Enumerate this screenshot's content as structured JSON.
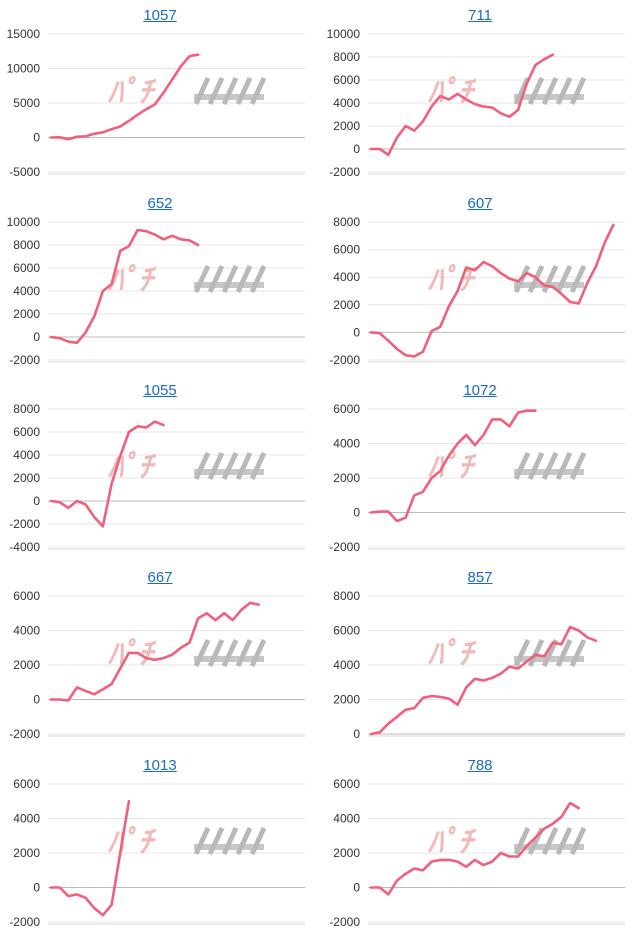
{
  "page": {
    "columns": 2,
    "rows": 5
  },
  "style": {
    "line_color": "#f0607a",
    "axis_color": "#cccccc",
    "title_color": "#1a6bc1",
    "watermark_color_left": "#f2b9b9",
    "watermark_color_right": "#b9b9b9"
  },
  "watermark": {
    "present": true
  },
  "chart_data": [
    {
      "type": "line",
      "title": "1057",
      "ylim": [
        -5000,
        15000
      ],
      "yticks": [
        15000,
        10000,
        5000,
        0,
        -5000
      ],
      "values": [
        0,
        30,
        -250,
        100,
        180,
        550,
        750,
        1200,
        1600,
        2400,
        3300,
        4100,
        4800,
        6500,
        8400,
        10300,
        11800,
        12000
      ]
    },
    {
      "type": "line",
      "title": "711",
      "ylim": [
        -2000,
        10000
      ],
      "yticks": [
        10000,
        8000,
        6000,
        4000,
        2000,
        0,
        -2000
      ],
      "values": [
        0,
        0,
        -500,
        1000,
        2000,
        1600,
        2400,
        3700,
        4600,
        4300,
        4800,
        4300,
        3900,
        3700,
        3600,
        3100,
        2800,
        3400,
        5700,
        7300,
        7800,
        8200
      ]
    },
    {
      "type": "line",
      "title": "652",
      "ylim": [
        -2000,
        10000
      ],
      "yticks": [
        10000,
        8000,
        6000,
        4000,
        2000,
        0,
        -2000
      ],
      "values": [
        0,
        -100,
        -400,
        -500,
        400,
        1800,
        4000,
        4600,
        7500,
        7900,
        9300,
        9200,
        8900,
        8500,
        8800,
        8500,
        8400,
        8000
      ]
    },
    {
      "type": "line",
      "title": "607",
      "ylim": [
        -2000,
        8000
      ],
      "yticks": [
        8000,
        6000,
        4000,
        2000,
        0,
        -2000
      ],
      "values": [
        0,
        -50,
        -600,
        -1200,
        -1650,
        -1750,
        -1400,
        100,
        400,
        1900,
        3000,
        4700,
        4500,
        5100,
        4800,
        4300,
        3900,
        3700,
        4300,
        4000,
        3400,
        3300,
        2800,
        2200,
        2100,
        3600,
        4800,
        6500,
        7800
      ]
    },
    {
      "type": "line",
      "title": "1055",
      "ylim": [
        -4000,
        8000
      ],
      "yticks": [
        8000,
        6000,
        4000,
        2000,
        0,
        -2000,
        -4000
      ],
      "values": [
        0,
        -100,
        -600,
        0,
        -300,
        -1400,
        -2200,
        1500,
        3900,
        6000,
        6500,
        6400,
        6900,
        6600
      ]
    },
    {
      "type": "line",
      "title": "1072",
      "ylim": [
        -2000,
        6000
      ],
      "yticks": [
        6000,
        4000,
        2000,
        0,
        -2000
      ],
      "values": [
        0,
        50,
        50,
        -500,
        -300,
        1000,
        1200,
        2000,
        2400,
        3300,
        4000,
        4500,
        3900,
        4500,
        5400,
        5400,
        5000,
        5800,
        5900,
        5900
      ]
    },
    {
      "type": "line",
      "title": "667",
      "ylim": [
        -2000,
        6000
      ],
      "yticks": [
        6000,
        4000,
        2000,
        0,
        -2000
      ],
      "values": [
        0,
        0,
        -50,
        700,
        500,
        300,
        600,
        900,
        1800,
        2700,
        2700,
        2400,
        2300,
        2400,
        2600,
        3000,
        3300,
        4700,
        5000,
        4600,
        5000,
        4600,
        5200,
        5600,
        5500
      ]
    },
    {
      "type": "line",
      "title": "857",
      "ylim": [
        0,
        8000
      ],
      "yticks": [
        8000,
        6000,
        4000,
        2000,
        0
      ],
      "values": [
        0,
        100,
        600,
        1000,
        1400,
        1500,
        2100,
        2200,
        2150,
        2050,
        1700,
        2700,
        3200,
        3100,
        3250,
        3500,
        3900,
        3800,
        4200,
        4600,
        4500,
        5300,
        5200,
        6200,
        6000,
        5600,
        5400
      ]
    },
    {
      "type": "line",
      "title": "1013",
      "ylim": [
        -2000,
        6000
      ],
      "yticks": [
        6000,
        4000,
        2000,
        0,
        -2000
      ],
      "values": [
        0,
        0,
        -500,
        -400,
        -600,
        -1200,
        -1600,
        -1000,
        2000,
        5000
      ]
    },
    {
      "type": "line",
      "title": "788",
      "ylim": [
        -2000,
        6000
      ],
      "yticks": [
        6000,
        4000,
        2000,
        0,
        -2000
      ],
      "values": [
        0,
        0,
        -400,
        400,
        800,
        1100,
        1000,
        1500,
        1600,
        1600,
        1500,
        1200,
        1600,
        1300,
        1500,
        2000,
        1800,
        1800,
        2400,
        2900,
        3400,
        3700,
        4100,
        4900,
        4600
      ]
    }
  ]
}
